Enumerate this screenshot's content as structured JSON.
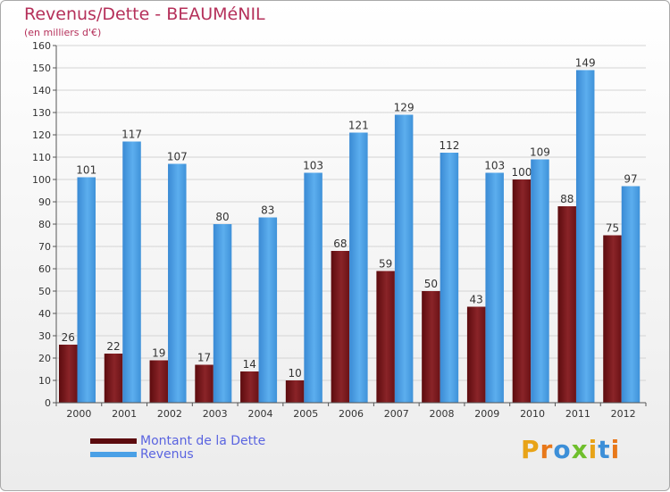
{
  "title": "Revenus/Dette - BEAUMéNIL",
  "subtitle": "(en milliers d'€)",
  "colors": {
    "dette": "#7a1a1e",
    "dette_dark": "#5c0b0e",
    "revenus": "#4aa0e6",
    "revenus_dark": "#2f7fc4"
  },
  "logo": {
    "letters": [
      "P",
      "r",
      "o",
      "x",
      "i",
      "t",
      "i"
    ],
    "colors": [
      "#e8a317",
      "#e8781a",
      "#3c8fd8",
      "#6fbf2c",
      "#e8a317",
      "#3c8fd8",
      "#e8781a"
    ]
  },
  "chart_data": {
    "type": "bar",
    "categories": [
      "2000",
      "2001",
      "2002",
      "2003",
      "2004",
      "2005",
      "2006",
      "2007",
      "2008",
      "2009",
      "2010",
      "2011",
      "2012"
    ],
    "series": [
      {
        "name": "Montant de la Dette",
        "values": [
          26,
          22,
          19,
          17,
          14,
          10,
          68,
          59,
          50,
          43,
          100,
          88,
          75
        ]
      },
      {
        "name": "Revenus",
        "values": [
          101,
          117,
          107,
          80,
          83,
          103,
          121,
          129,
          112,
          103,
          109,
          149,
          97
        ]
      }
    ],
    "ylim": [
      0,
      160
    ],
    "yticks": [
      0,
      10,
      20,
      30,
      40,
      50,
      60,
      70,
      80,
      90,
      100,
      110,
      120,
      130,
      140,
      150,
      160
    ],
    "grid": true,
    "legend_position": "bottom-left"
  }
}
